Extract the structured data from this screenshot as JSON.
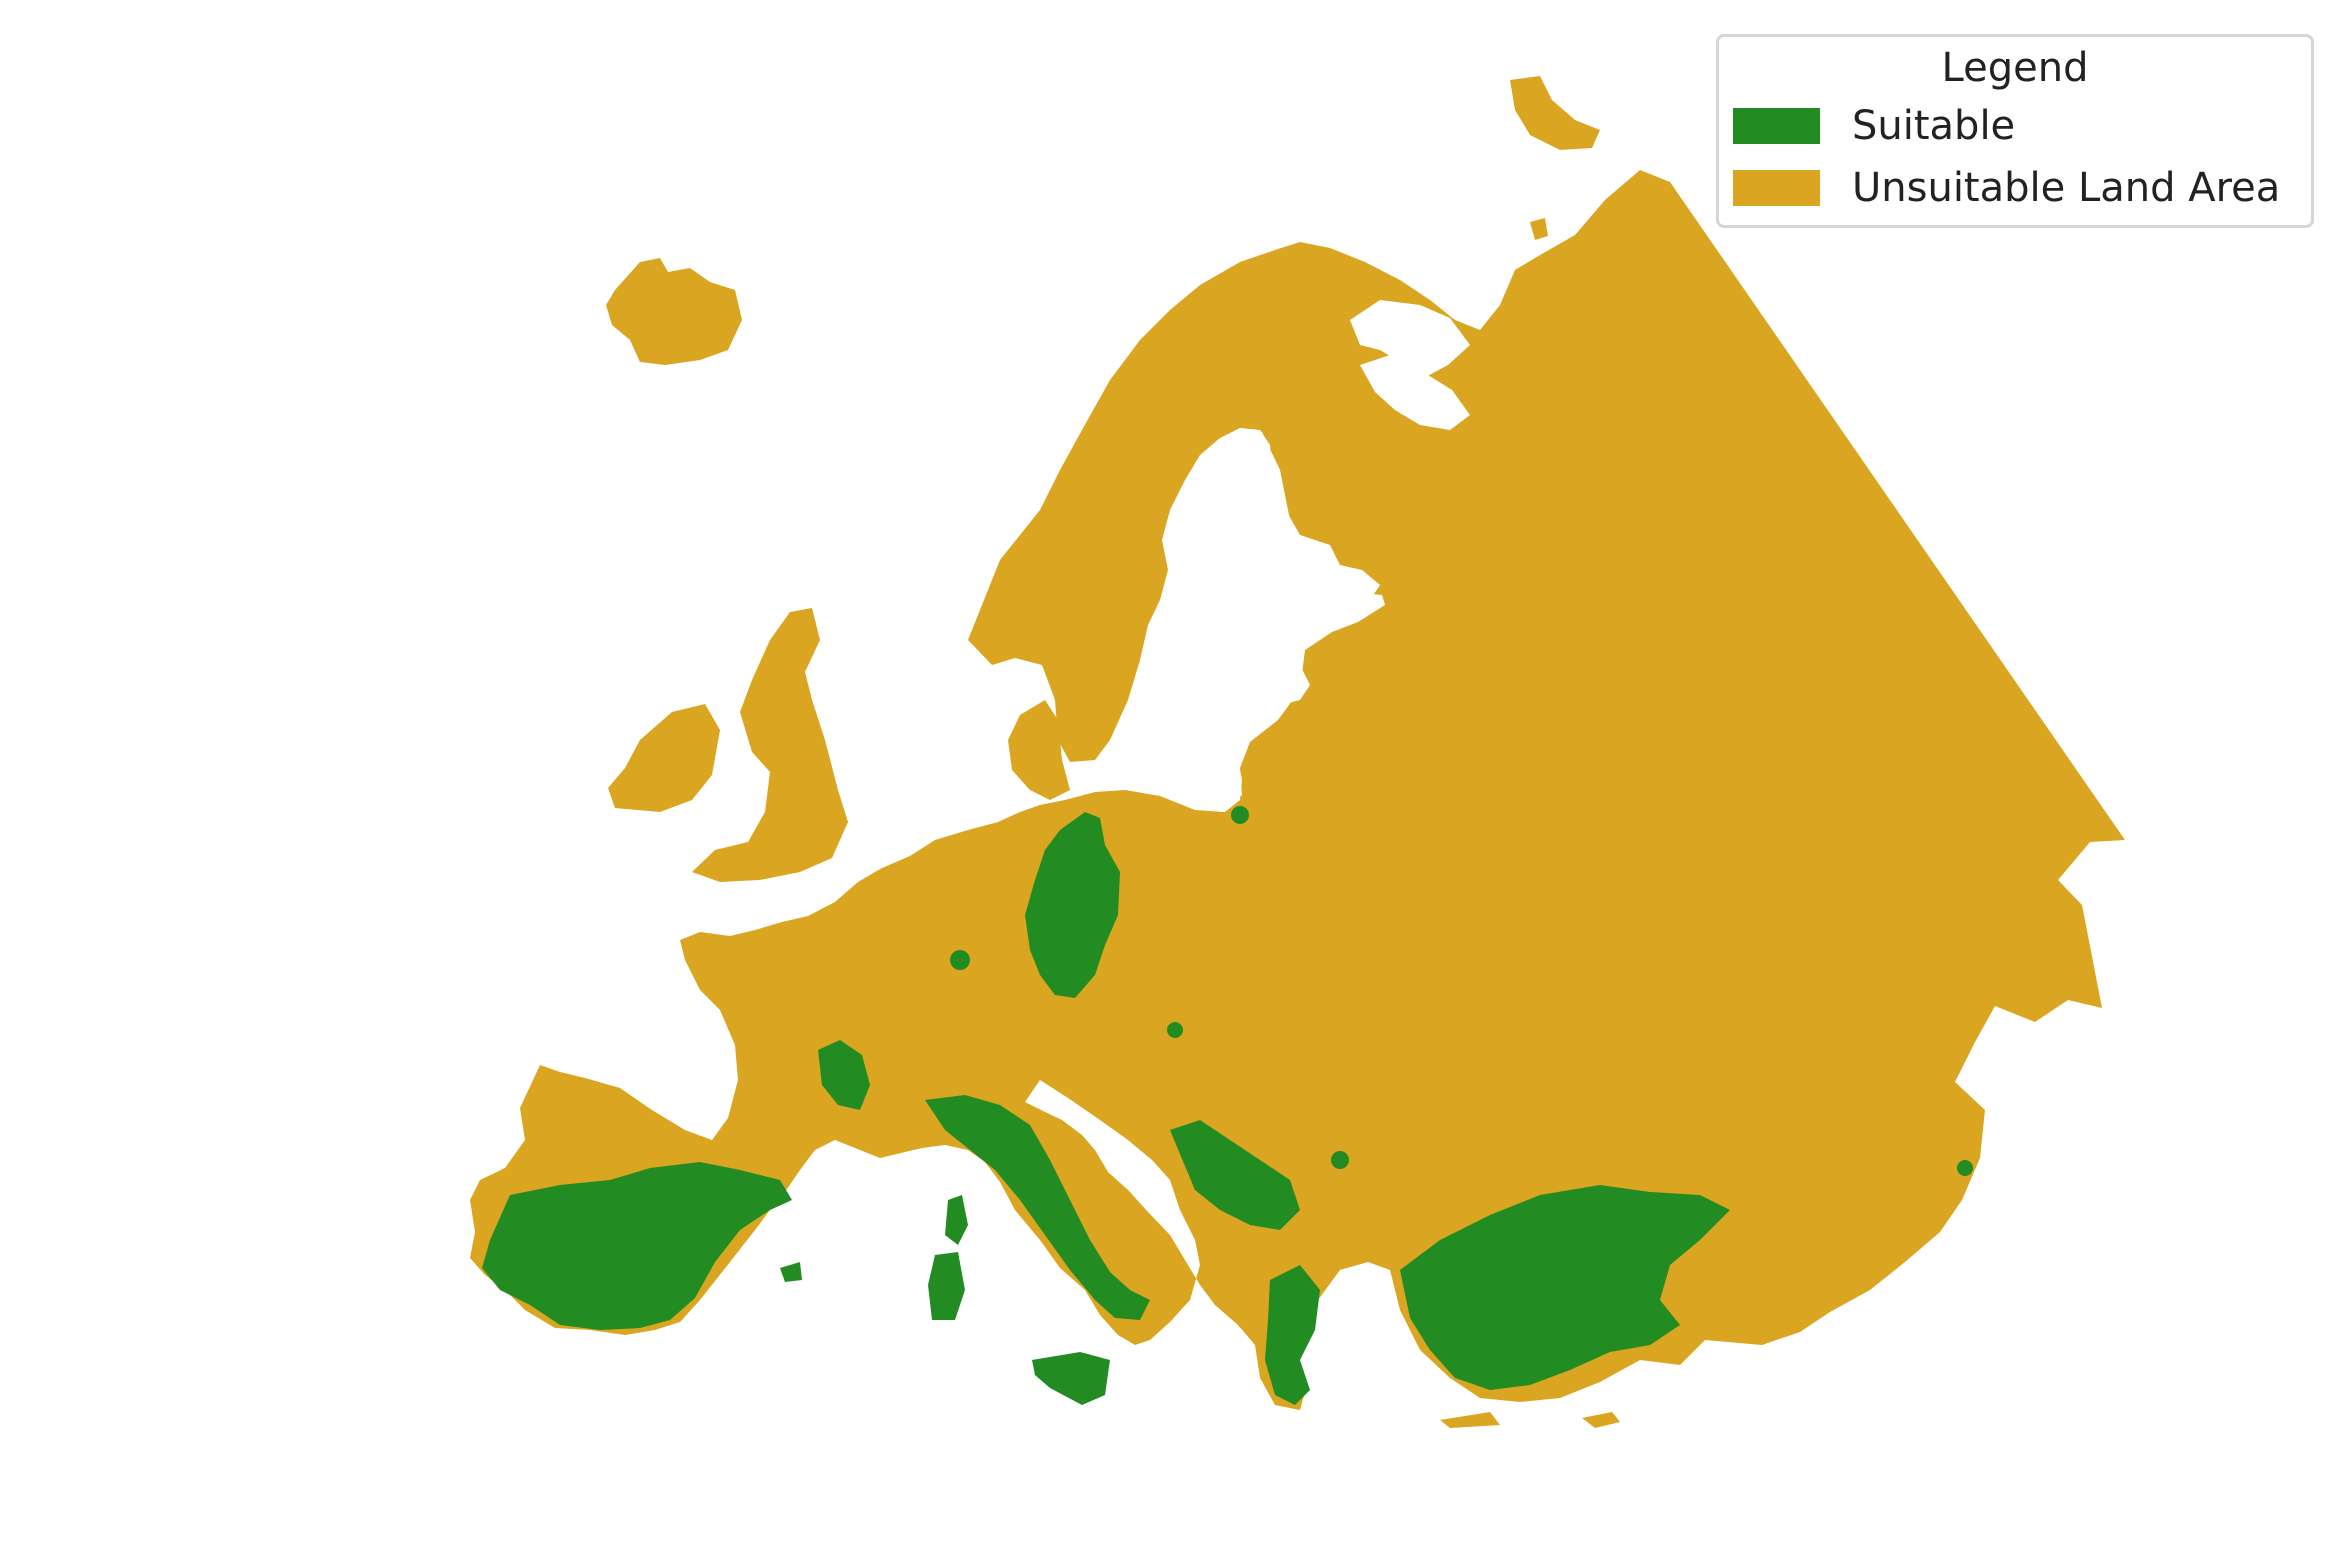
{
  "colors": {
    "suitable": "#228b22",
    "unsuitable": "#daa520",
    "background": "#ffffff"
  },
  "legend": {
    "title": "Legend",
    "entries": [
      {
        "label": "Suitable",
        "color": "#228b22"
      },
      {
        "label": "Unsuitable Land Area",
        "color": "#daa520"
      }
    ]
  }
}
